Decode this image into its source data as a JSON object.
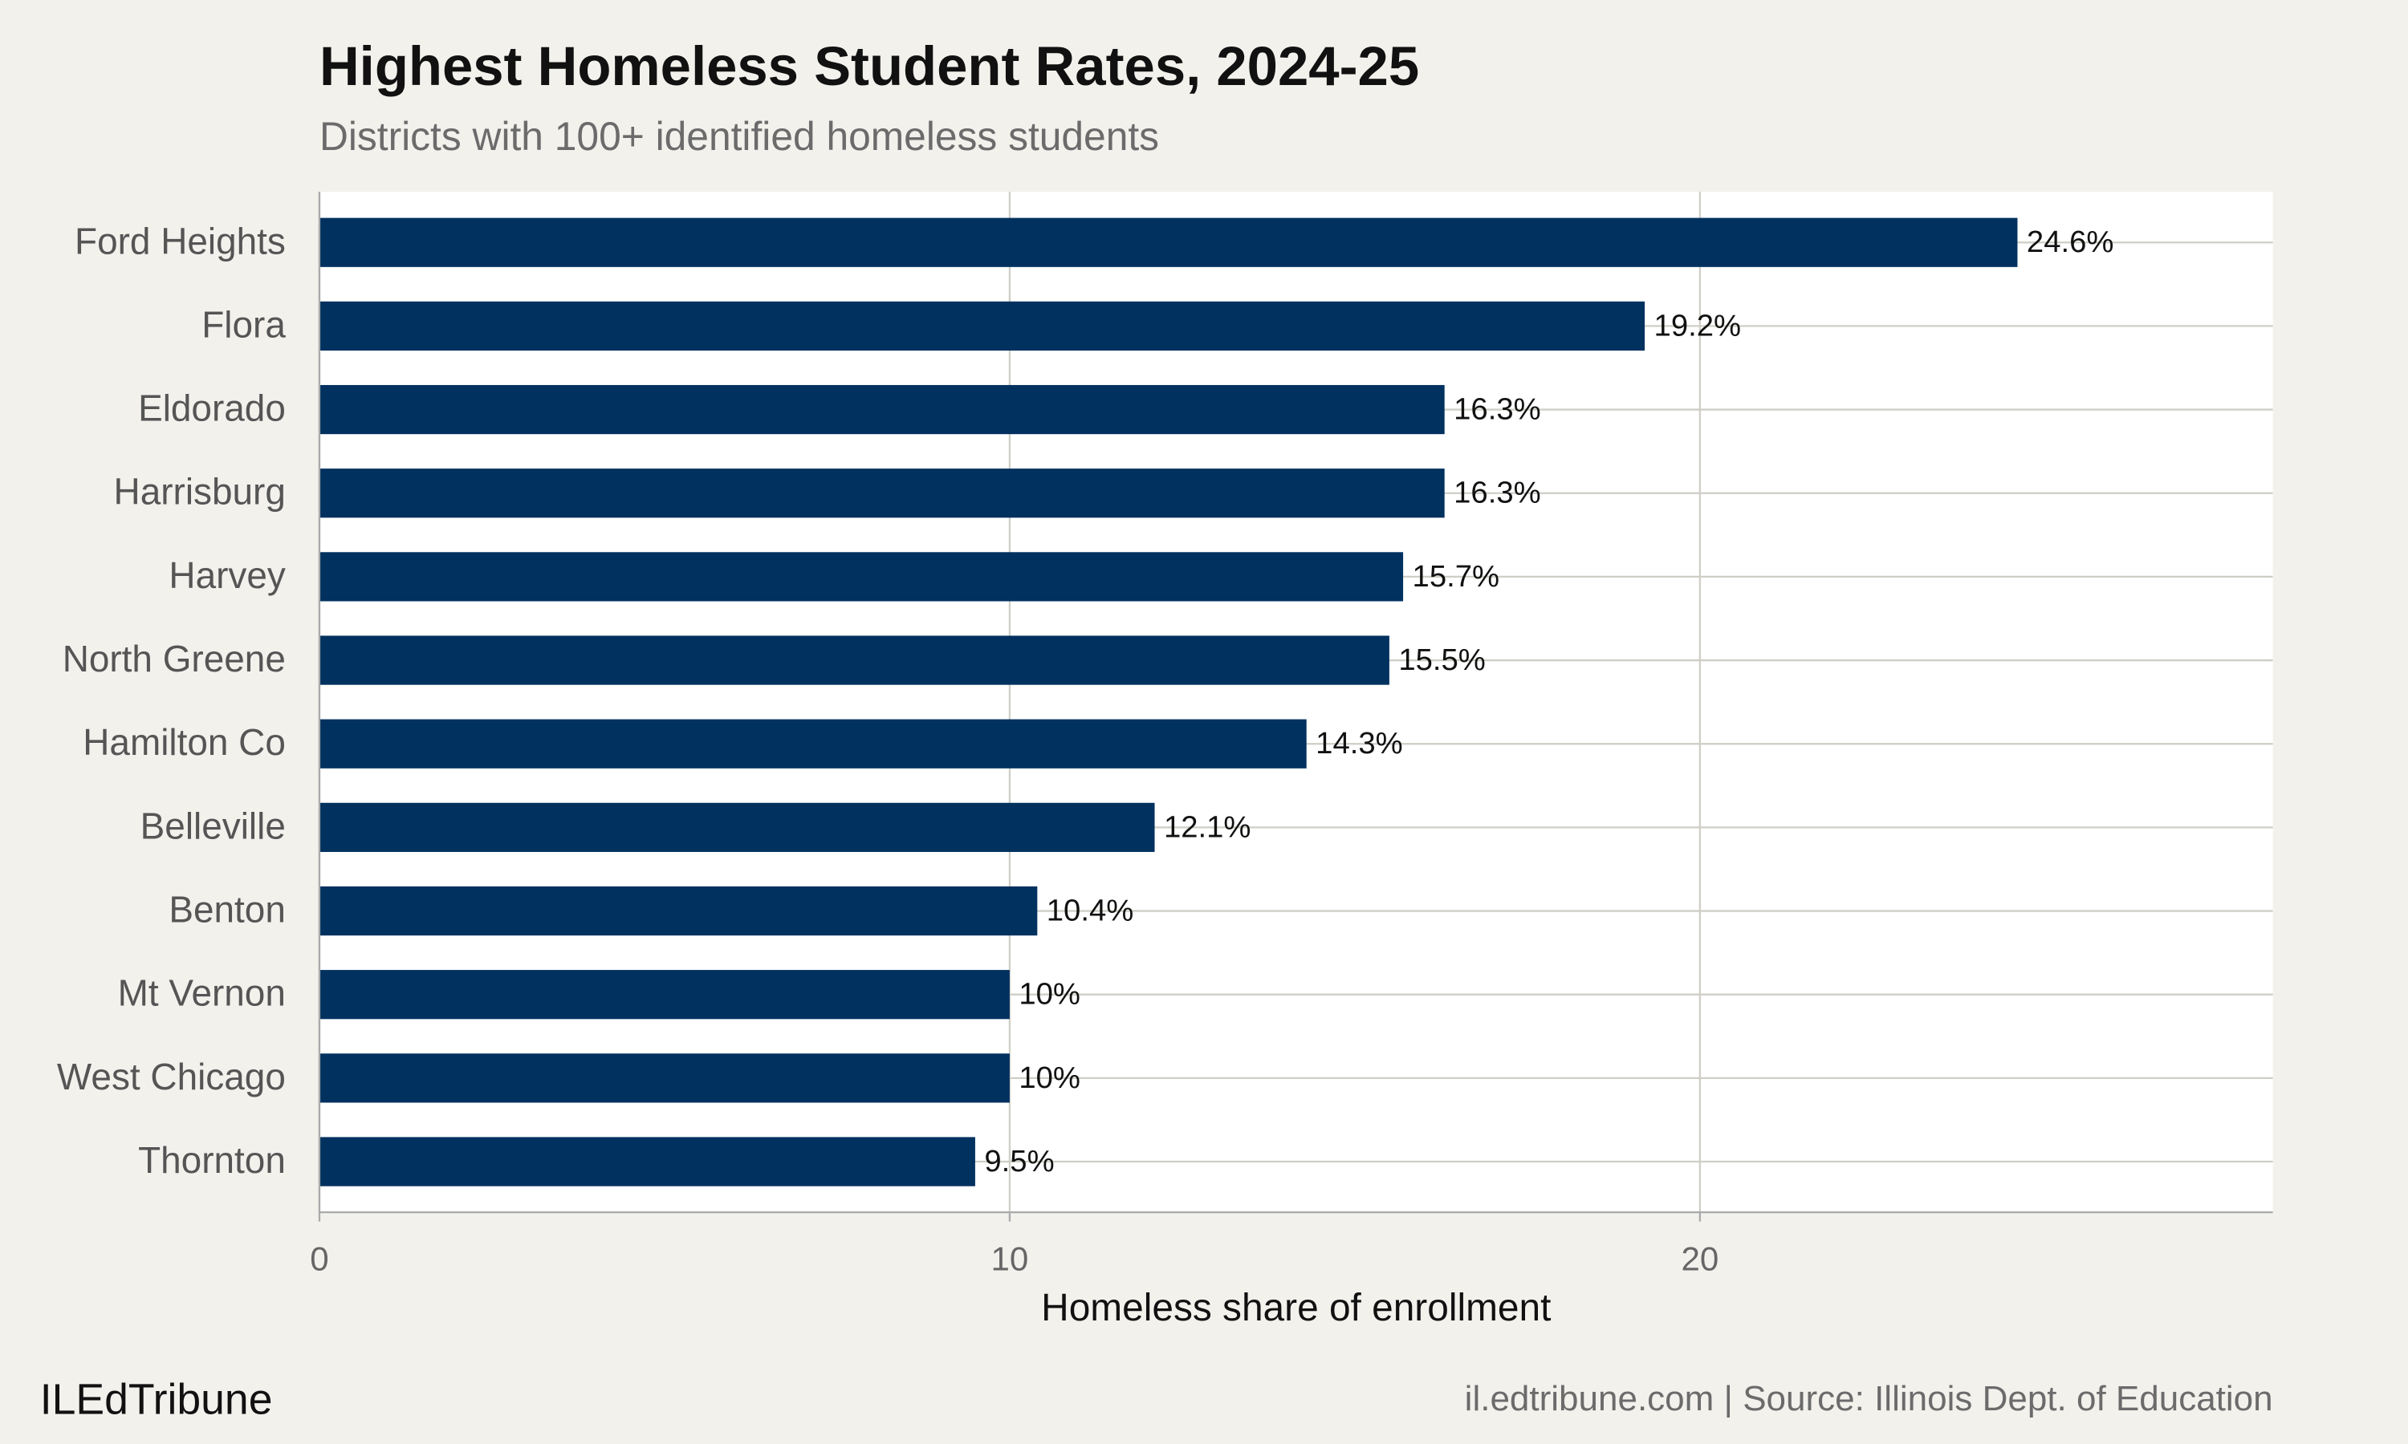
{
  "chart_data": {
    "type": "bar",
    "orientation": "horizontal",
    "title": "Highest Homeless Student Rates, 2024-25",
    "subtitle": "Districts with 100+ identified homeless students",
    "x_label": "Homeless share of enrollment",
    "categories": [
      "Ford Heights",
      "Flora",
      "Eldorado",
      "Harrisburg",
      "Harvey",
      "North Greene",
      "Hamilton Co",
      "Belleville",
      "Benton",
      "Mt Vernon",
      "West Chicago",
      "Thornton"
    ],
    "values": [
      24.6,
      19.2,
      16.3,
      16.3,
      15.7,
      15.5,
      14.3,
      12.1,
      10.4,
      10,
      10,
      9.5
    ],
    "value_labels": [
      "24.6%",
      "19.2%",
      "16.3%",
      "16.3%",
      "15.7%",
      "15.5%",
      "14.3%",
      "12.1%",
      "10.4%",
      "10%",
      "10%",
      "9.5%"
    ],
    "color": "#00315f",
    "xlim": [
      0,
      28.3
    ],
    "xticks": [
      0,
      10,
      20
    ],
    "grid": true,
    "brand": "ILEdTribune",
    "source": "il.edtribune.com | Source: Illinois Dept. of Education"
  }
}
